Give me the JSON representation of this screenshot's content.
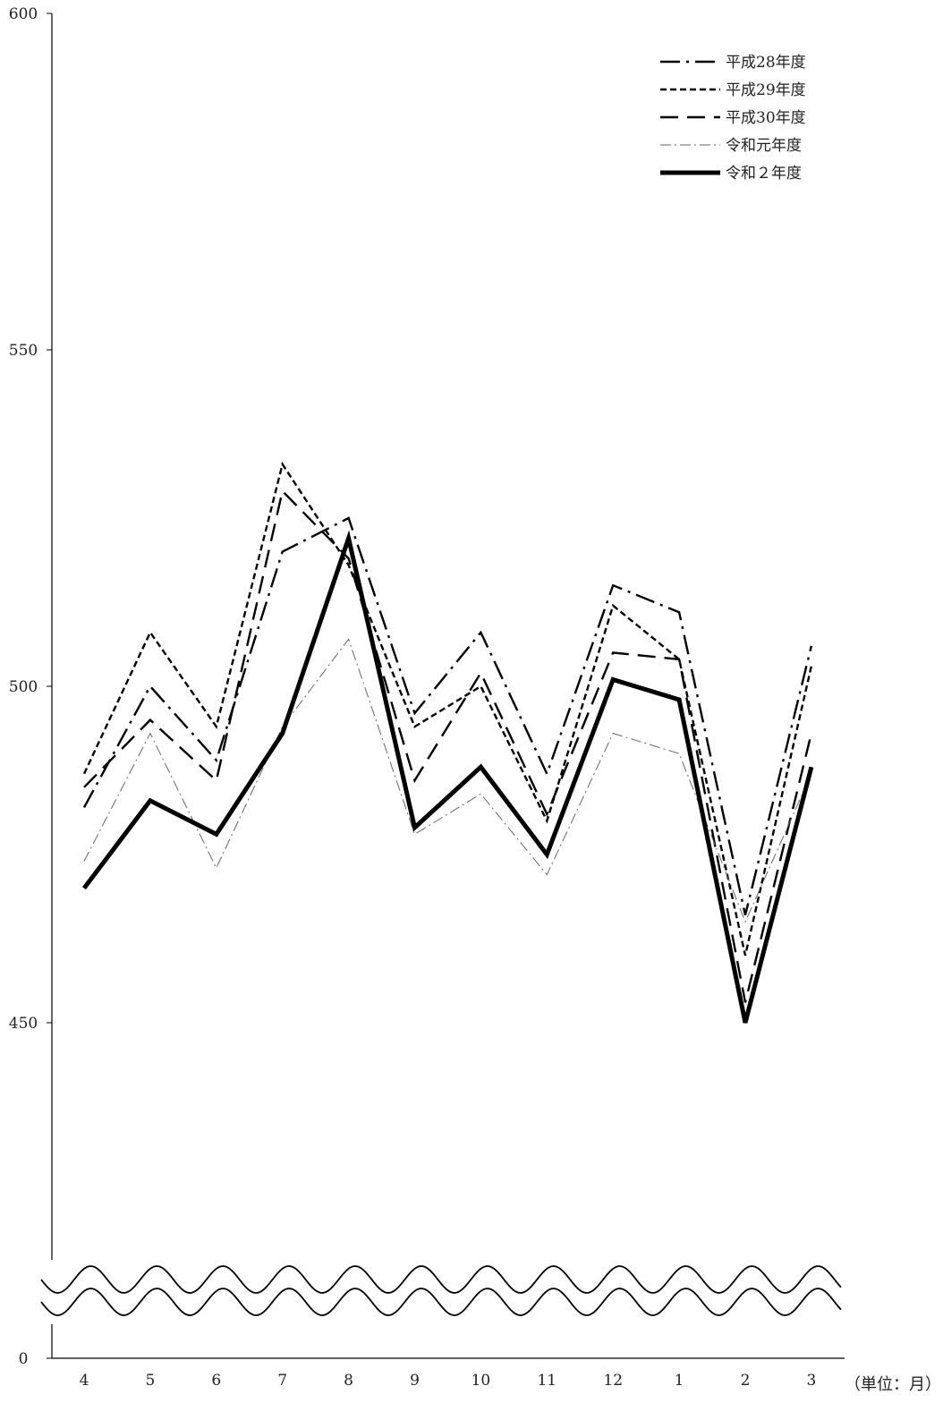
{
  "chart_data": {
    "type": "line",
    "categories": [
      "4",
      "5",
      "6",
      "7",
      "8",
      "9",
      "10",
      "11",
      "12",
      "1",
      "2",
      "3"
    ],
    "y_ticks": [
      "0",
      "450",
      "500",
      "550",
      "600"
    ],
    "ylim": [
      450,
      600
    ],
    "axis_break": true,
    "grid": false,
    "unit_label": "（単位：月）",
    "legend_position": "top-right",
    "series": [
      {
        "name": "平成28年度",
        "style": "dash-dot",
        "color": "#000000",
        "values": [
          482,
          500,
          489,
          520,
          525,
          496,
          508,
          487,
          515,
          511,
          466,
          506
        ]
      },
      {
        "name": "平成29年度",
        "style": "short-dash",
        "color": "#000000",
        "values": [
          487,
          508,
          494,
          533,
          518,
          494,
          500,
          480,
          512,
          504,
          460,
          503
        ]
      },
      {
        "name": "平成30年度",
        "style": "long-dash",
        "color": "#000000",
        "values": [
          485,
          495,
          486,
          529,
          519,
          486,
          502,
          481,
          505,
          504,
          453,
          493
        ]
      },
      {
        "name": "令和元年度",
        "style": "thin-dash-dot",
        "color": "#666666",
        "values": [
          474,
          493,
          473,
          494,
          507,
          478,
          484,
          472,
          493,
          490,
          465,
          487
        ]
      },
      {
        "name": "令和２年度",
        "style": "thick-solid",
        "color": "#000000",
        "values": [
          470,
          483,
          478,
          493,
          522,
          479,
          488,
          475,
          501,
          498,
          450,
          488
        ]
      }
    ]
  }
}
